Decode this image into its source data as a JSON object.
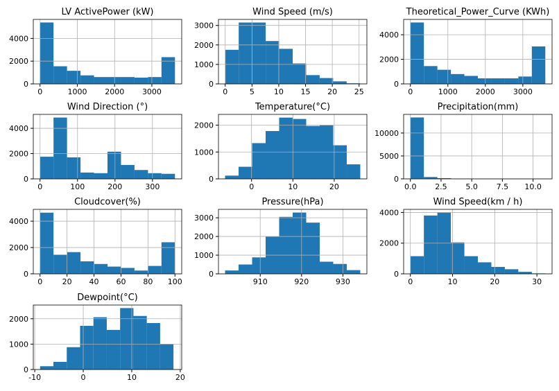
{
  "chart_data": [
    {
      "type": "histogram",
      "title": "LV ActivePower (kW)",
      "bins": [
        0,
        362,
        724,
        1086,
        1448,
        1810,
        2172,
        2534,
        2896,
        3258,
        3620
      ],
      "values": [
        5400,
        1550,
        1150,
        750,
        600,
        600,
        600,
        550,
        600,
        2350
      ],
      "xlim": [
        -181,
        3801
      ],
      "xticks": [
        0,
        1000,
        2000,
        3000
      ],
      "ylim": [
        0,
        5670
      ],
      "yticks": [
        0,
        2000,
        4000
      ],
      "grid": true,
      "color": "#1f77b4"
    },
    {
      "type": "histogram",
      "title": "Wind Speed (m/s)",
      "bins": [
        0,
        2.52,
        5.04,
        7.56,
        10.08,
        12.6,
        15.12,
        17.64,
        20.16,
        22.68,
        25.2
      ],
      "values": [
        1750,
        3150,
        3150,
        2200,
        1800,
        1050,
        450,
        300,
        130,
        30
      ],
      "xlim": [
        -1.26,
        26.46
      ],
      "xticks": [
        0,
        5,
        10,
        15,
        20,
        25
      ],
      "ylim": [
        0,
        3310
      ],
      "yticks": [
        0,
        1000,
        2000,
        3000
      ],
      "grid": true,
      "color": "#1f77b4"
    },
    {
      "type": "histogram",
      "title": "Theoretical_Power_Curve (KWh)",
      "bins": [
        0,
        360,
        720,
        1080,
        1440,
        1800,
        2160,
        2520,
        2880,
        3240,
        3600
      ],
      "values": [
        5000,
        1450,
        1150,
        800,
        650,
        450,
        450,
        450,
        600,
        3050
      ],
      "xlim": [
        -180,
        3780
      ],
      "xticks": [
        0,
        1000,
        2000,
        3000
      ],
      "ylim": [
        0,
        5250
      ],
      "yticks": [
        0,
        2000,
        4000
      ],
      "grid": true,
      "color": "#1f77b4"
    },
    {
      "type": "histogram",
      "title": "Wind Direction (°)",
      "bins": [
        0,
        36,
        72,
        108,
        144,
        180,
        216,
        252,
        288,
        324,
        360
      ],
      "values": [
        1750,
        4850,
        1700,
        500,
        450,
        2150,
        1100,
        700,
        450,
        400
      ],
      "xlim": [
        -18,
        378
      ],
      "xticks": [
        0,
        100,
        200,
        300
      ],
      "ylim": [
        0,
        5100
      ],
      "yticks": [
        0,
        2000,
        4000
      ],
      "grid": true,
      "color": "#1f77b4"
    },
    {
      "type": "histogram",
      "title": "Temperature(°C)",
      "bins": [
        -6.4,
        -3.13,
        0.14,
        3.41,
        6.68,
        9.95,
        13.22,
        16.49,
        19.76,
        23.03,
        26.3
      ],
      "values": [
        120,
        450,
        1330,
        1780,
        2280,
        2230,
        1970,
        2000,
        1250,
        540
      ],
      "xlim": [
        -8.0,
        27.9
      ],
      "xticks": [
        0,
        10,
        20
      ],
      "ylim": [
        0,
        2400
      ],
      "yticks": [
        0,
        1000,
        2000
      ],
      "grid": true,
      "color": "#1f77b4"
    },
    {
      "type": "histogram",
      "title": "Precipitation(mm)",
      "bins": [
        0,
        1.1,
        2.2,
        3.3,
        4.4,
        5.5,
        6.6,
        7.7,
        8.8,
        9.9,
        11
      ],
      "values": [
        13400,
        400,
        150,
        60,
        20,
        10,
        5,
        3,
        2,
        1
      ],
      "xlim": [
        -0.55,
        11.55
      ],
      "xticks": [
        {
          "value": 0,
          "label": "0.0"
        },
        2.5,
        {
          "value": 5,
          "label": "5.0"
        },
        7.5,
        {
          "value": 10,
          "label": "10.0"
        }
      ],
      "ylim": [
        0,
        14070
      ],
      "yticks": [
        0,
        5000,
        10000
      ],
      "grid": true,
      "color": "#1f77b4"
    },
    {
      "type": "histogram",
      "title": "Cloudcover(%)",
      "bins": [
        0,
        10,
        20,
        30,
        40,
        50,
        60,
        70,
        80,
        90,
        100
      ],
      "values": [
        4650,
        1450,
        1650,
        950,
        750,
        550,
        450,
        250,
        600,
        2400
      ],
      "xlim": [
        -5,
        105
      ],
      "xticks": [
        0,
        20,
        40,
        60,
        80,
        100
      ],
      "ylim": [
        0,
        4900
      ],
      "yticks": [
        0,
        2000,
        4000
      ],
      "grid": true,
      "color": "#1f77b4"
    },
    {
      "type": "histogram",
      "title": "Pressure(hPa)",
      "bins": [
        901.5,
        904.77,
        908.04,
        911.31,
        914.58,
        917.85,
        921.12,
        924.39,
        927.66,
        930.93,
        934.2
      ],
      "values": [
        180,
        500,
        880,
        1990,
        3050,
        3280,
        2740,
        650,
        530,
        200
      ],
      "xlim": [
        899.9,
        935.8
      ],
      "xticks": [
        910,
        920,
        930
      ],
      "ylim": [
        0,
        3450
      ],
      "yticks": [
        0,
        1000,
        2000,
        3000
      ],
      "grid": true,
      "color": "#1f77b4"
    },
    {
      "type": "histogram",
      "title": "Wind Speed(km / h)",
      "bins": [
        0,
        3.2,
        6.4,
        9.6,
        12.8,
        16,
        19.2,
        22.4,
        25.6,
        28.8,
        32
      ],
      "values": [
        1150,
        3800,
        4000,
        2050,
        1150,
        750,
        450,
        300,
        130,
        30
      ],
      "xlim": [
        -1.6,
        33.6
      ],
      "xticks": [
        0,
        10,
        20,
        30
      ],
      "ylim": [
        0,
        4200
      ],
      "yticks": [
        0,
        2000,
        4000
      ],
      "grid": true,
      "color": "#1f77b4"
    },
    {
      "type": "histogram",
      "title": "Dewpoint(°C)",
      "bins": [
        -8.9,
        -6.15,
        -3.4,
        -0.65,
        2.1,
        4.85,
        7.6,
        10.35,
        13.1,
        15.85,
        18.6
      ],
      "values": [
        130,
        300,
        880,
        1720,
        2060,
        1560,
        2420,
        2110,
        1830,
        1000
      ],
      "xlim": [
        -10.3,
        20.3
      ],
      "xticks": [
        -10,
        0,
        10,
        20
      ],
      "ylim": [
        0,
        2540
      ],
      "yticks": [
        0,
        1000,
        2000
      ],
      "grid": true,
      "color": "#1f77b4"
    }
  ]
}
